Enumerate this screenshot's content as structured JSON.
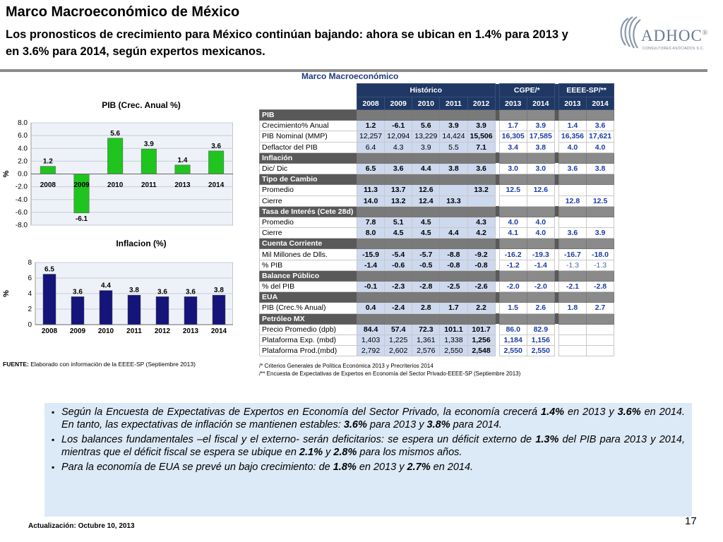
{
  "header": {
    "title": "Marco Macroeconómico de México",
    "subtitle": "Los pronosticos de crecimiento para México continúan bajando: ahora se ubican en 1.4% para 2013 y en 3.6% para  2014, según expertos mexicanos."
  },
  "logo": {
    "name": "ADHOC",
    "sup": "®",
    "tagline": "CONSULTORES ASOCIADOS S.C."
  },
  "main_title": "Marco Macroeconómico",
  "chart_data": [
    {
      "type": "bar",
      "title": "PIB (Crec. Anual %)",
      "ylabel": "%",
      "categories": [
        "2008",
        "2009",
        "2010",
        "2011",
        "2013",
        "2014"
      ],
      "values": [
        1.2,
        -6.1,
        5.6,
        3.9,
        1.4,
        3.6
      ],
      "labels": [
        "1.2",
        "-6.1",
        "5.6",
        "3.9",
        "1.4",
        "3.6"
      ],
      "yticks": [
        "8.0",
        "6.0",
        "4.0",
        "2.0",
        "0.0",
        "-2.0",
        "-4.0",
        "-6.0",
        "-8.0"
      ],
      "ylim": [
        -8,
        8
      ],
      "color": "#1fc41f"
    },
    {
      "type": "bar",
      "title": "Inflacion (%)",
      "ylabel": "%",
      "categories": [
        "2008",
        "2009",
        "2010",
        "2011",
        "2012",
        "2013",
        "2014"
      ],
      "values": [
        6.5,
        3.6,
        4.4,
        3.8,
        3.6,
        3.6,
        3.8
      ],
      "labels": [
        "6.5",
        "3.6",
        "4.4",
        "3.8",
        "3.6",
        "3.6",
        "3.8"
      ],
      "yticks": [
        "8",
        "6",
        "4",
        "2",
        "0"
      ],
      "ylim": [
        0,
        8
      ],
      "color": "#14147a"
    }
  ],
  "table": {
    "groups": [
      "Histórico",
      "CGPE/*",
      "EEEE-SP/**"
    ],
    "years": [
      "2008",
      "2009",
      "2010",
      "2011",
      "2012",
      "2013",
      "2014",
      "2013",
      "2014"
    ],
    "rows": [
      {
        "sec": "PIB"
      },
      {
        "label": "Crecimiento%  Anual",
        "v": [
          "1.2",
          "-6.1",
          "5.6",
          "3.9",
          "3.9",
          "1.7",
          "3.9",
          "1.4",
          "3.6"
        ]
      },
      {
        "label": "PIB Nominal (MMP)",
        "v": [
          "12,257",
          "12,094",
          "13,229",
          "14,424",
          "15,506",
          "16,305",
          "17,585",
          "16,356",
          "17,621"
        ]
      },
      {
        "label": "Deflactor del PIB",
        "v": [
          "6.4",
          "4.3",
          "3.9",
          "5.5",
          "7.1",
          "3.4",
          "3.8",
          "4.0",
          "4.0"
        ]
      },
      {
        "sec": "Inflación"
      },
      {
        "label": "Dic/ Dic",
        "v": [
          "6.5",
          "3.6",
          "4.4",
          "3.8",
          "3.6",
          "3.0",
          "3.0",
          "3.6",
          "3.8"
        ]
      },
      {
        "sec": "Tipo de Cambio"
      },
      {
        "label": "Promedio",
        "v": [
          "11.3",
          "13.7",
          "12.6",
          "",
          "13.2",
          "12.5",
          "12.6",
          "",
          ""
        ]
      },
      {
        "label": "Cierre",
        "v": [
          "14.0",
          "13.2",
          "12.4",
          "13.3",
          "",
          "",
          "",
          "12.8",
          "12.5"
        ]
      },
      {
        "sec": "Tasa de Interés (Cete 28d)"
      },
      {
        "label": "Promedio",
        "v": [
          "7.8",
          "5.1",
          "4.5",
          "",
          "4.3",
          "4.0",
          "4.0",
          "",
          ""
        ]
      },
      {
        "label": "Cierre",
        "v": [
          "8.0",
          "4.5",
          "4.5",
          "4.4",
          "4.2",
          "4.1",
          "4.0",
          "3.6",
          "3.9"
        ]
      },
      {
        "sec": "Cuenta Corriente"
      },
      {
        "label": "Mil Millones de Dlls.",
        "v": [
          "-15.9",
          "-5.4",
          "-5.7",
          "-8.8",
          "-9.2",
          "-16.2",
          "-19.3",
          "-16.7",
          "-18.0"
        ]
      },
      {
        "label": "% PIB",
        "v": [
          "-1.4",
          "-0.6",
          "-0.5",
          "-0.8",
          "-0.8",
          "-1.2",
          "-1.4",
          "-1.3",
          "-1.3"
        ]
      },
      {
        "sec": "Balance Público"
      },
      {
        "label": "% del PIB",
        "v": [
          "-0.1",
          "-2.3",
          "-2.8",
          "-2.5",
          "-2.6",
          "-2.0",
          "-2.0",
          "-2.1",
          "-2.8"
        ]
      },
      {
        "sec": "EUA"
      },
      {
        "label": "PIB (Crec.%  Anual)",
        "v": [
          "0.4",
          "-2.4",
          "2.8",
          "1.7",
          "2.2",
          "1.5",
          "2.6",
          "1.8",
          "2.7"
        ]
      },
      {
        "sec": "Petróleo MX"
      },
      {
        "label": "Precio Promedio (dpb)",
        "v": [
          "84.4",
          "57.4",
          "72.3",
          "101.1",
          "101.7",
          "86.0",
          "82.9",
          "",
          ""
        ]
      },
      {
        "label": "Plataforma Exp. (mbd)",
        "v": [
          "1,403",
          "1,225",
          "1,361",
          "1,338",
          "1,256",
          "1,184",
          "1,156",
          "",
          ""
        ]
      },
      {
        "label": "Plataforma Prod.(mbd)",
        "v": [
          "2,792",
          "2,602",
          "2,576",
          "2,550",
          "2,548",
          "2,550",
          "2,550",
          "",
          ""
        ]
      }
    ]
  },
  "fuente": {
    "label": "FUENTE:",
    "text": " Elaborado con información de la EEEE-SP (Septiembre 2013)"
  },
  "notes": [
    "/*   Criterios Generales de Política Económica 2013 y Precriterios 2014",
    "/**   Encuesta de Expectativas de Expertos en Economía del Sector Privado-EEEE-SP (Septiembre 2013)"
  ],
  "bullets": [
    [
      "Según la Encuesta de Expectativas de Expertos en Economía del Sector Privado, la economía crecerá ",
      {
        "b": "1.4%"
      },
      " en 2013 y ",
      {
        "b": "3.6%"
      },
      " en 2014. En tanto, las expectativas de inflación se mantienen estables: ",
      {
        "b": "3.6%"
      },
      " para 2013 y ",
      {
        "b": "3.8%"
      },
      " para 2014."
    ],
    [
      "Los balances fundamentales –el fiscal y el externo- serán deficitarios: se espera un déficit externo de ",
      {
        "b": "1.3%"
      },
      " del PIB para 2013 y 2014, mientras que el déficit fiscal se espera se ubique en ",
      {
        "b": "2.1%"
      },
      " y ",
      {
        "b": "2.8%"
      },
      " para los mismos años."
    ],
    [
      "Para la economía de EUA se prevé un bajo crecimiento: de ",
      {
        "b": "1.8%"
      },
      " en 2013 y ",
      {
        "b": "2.7%"
      },
      " en  2014."
    ]
  ],
  "footer": {
    "updated": "Actualización:  Octubre 10, 2013",
    "page": "17"
  }
}
